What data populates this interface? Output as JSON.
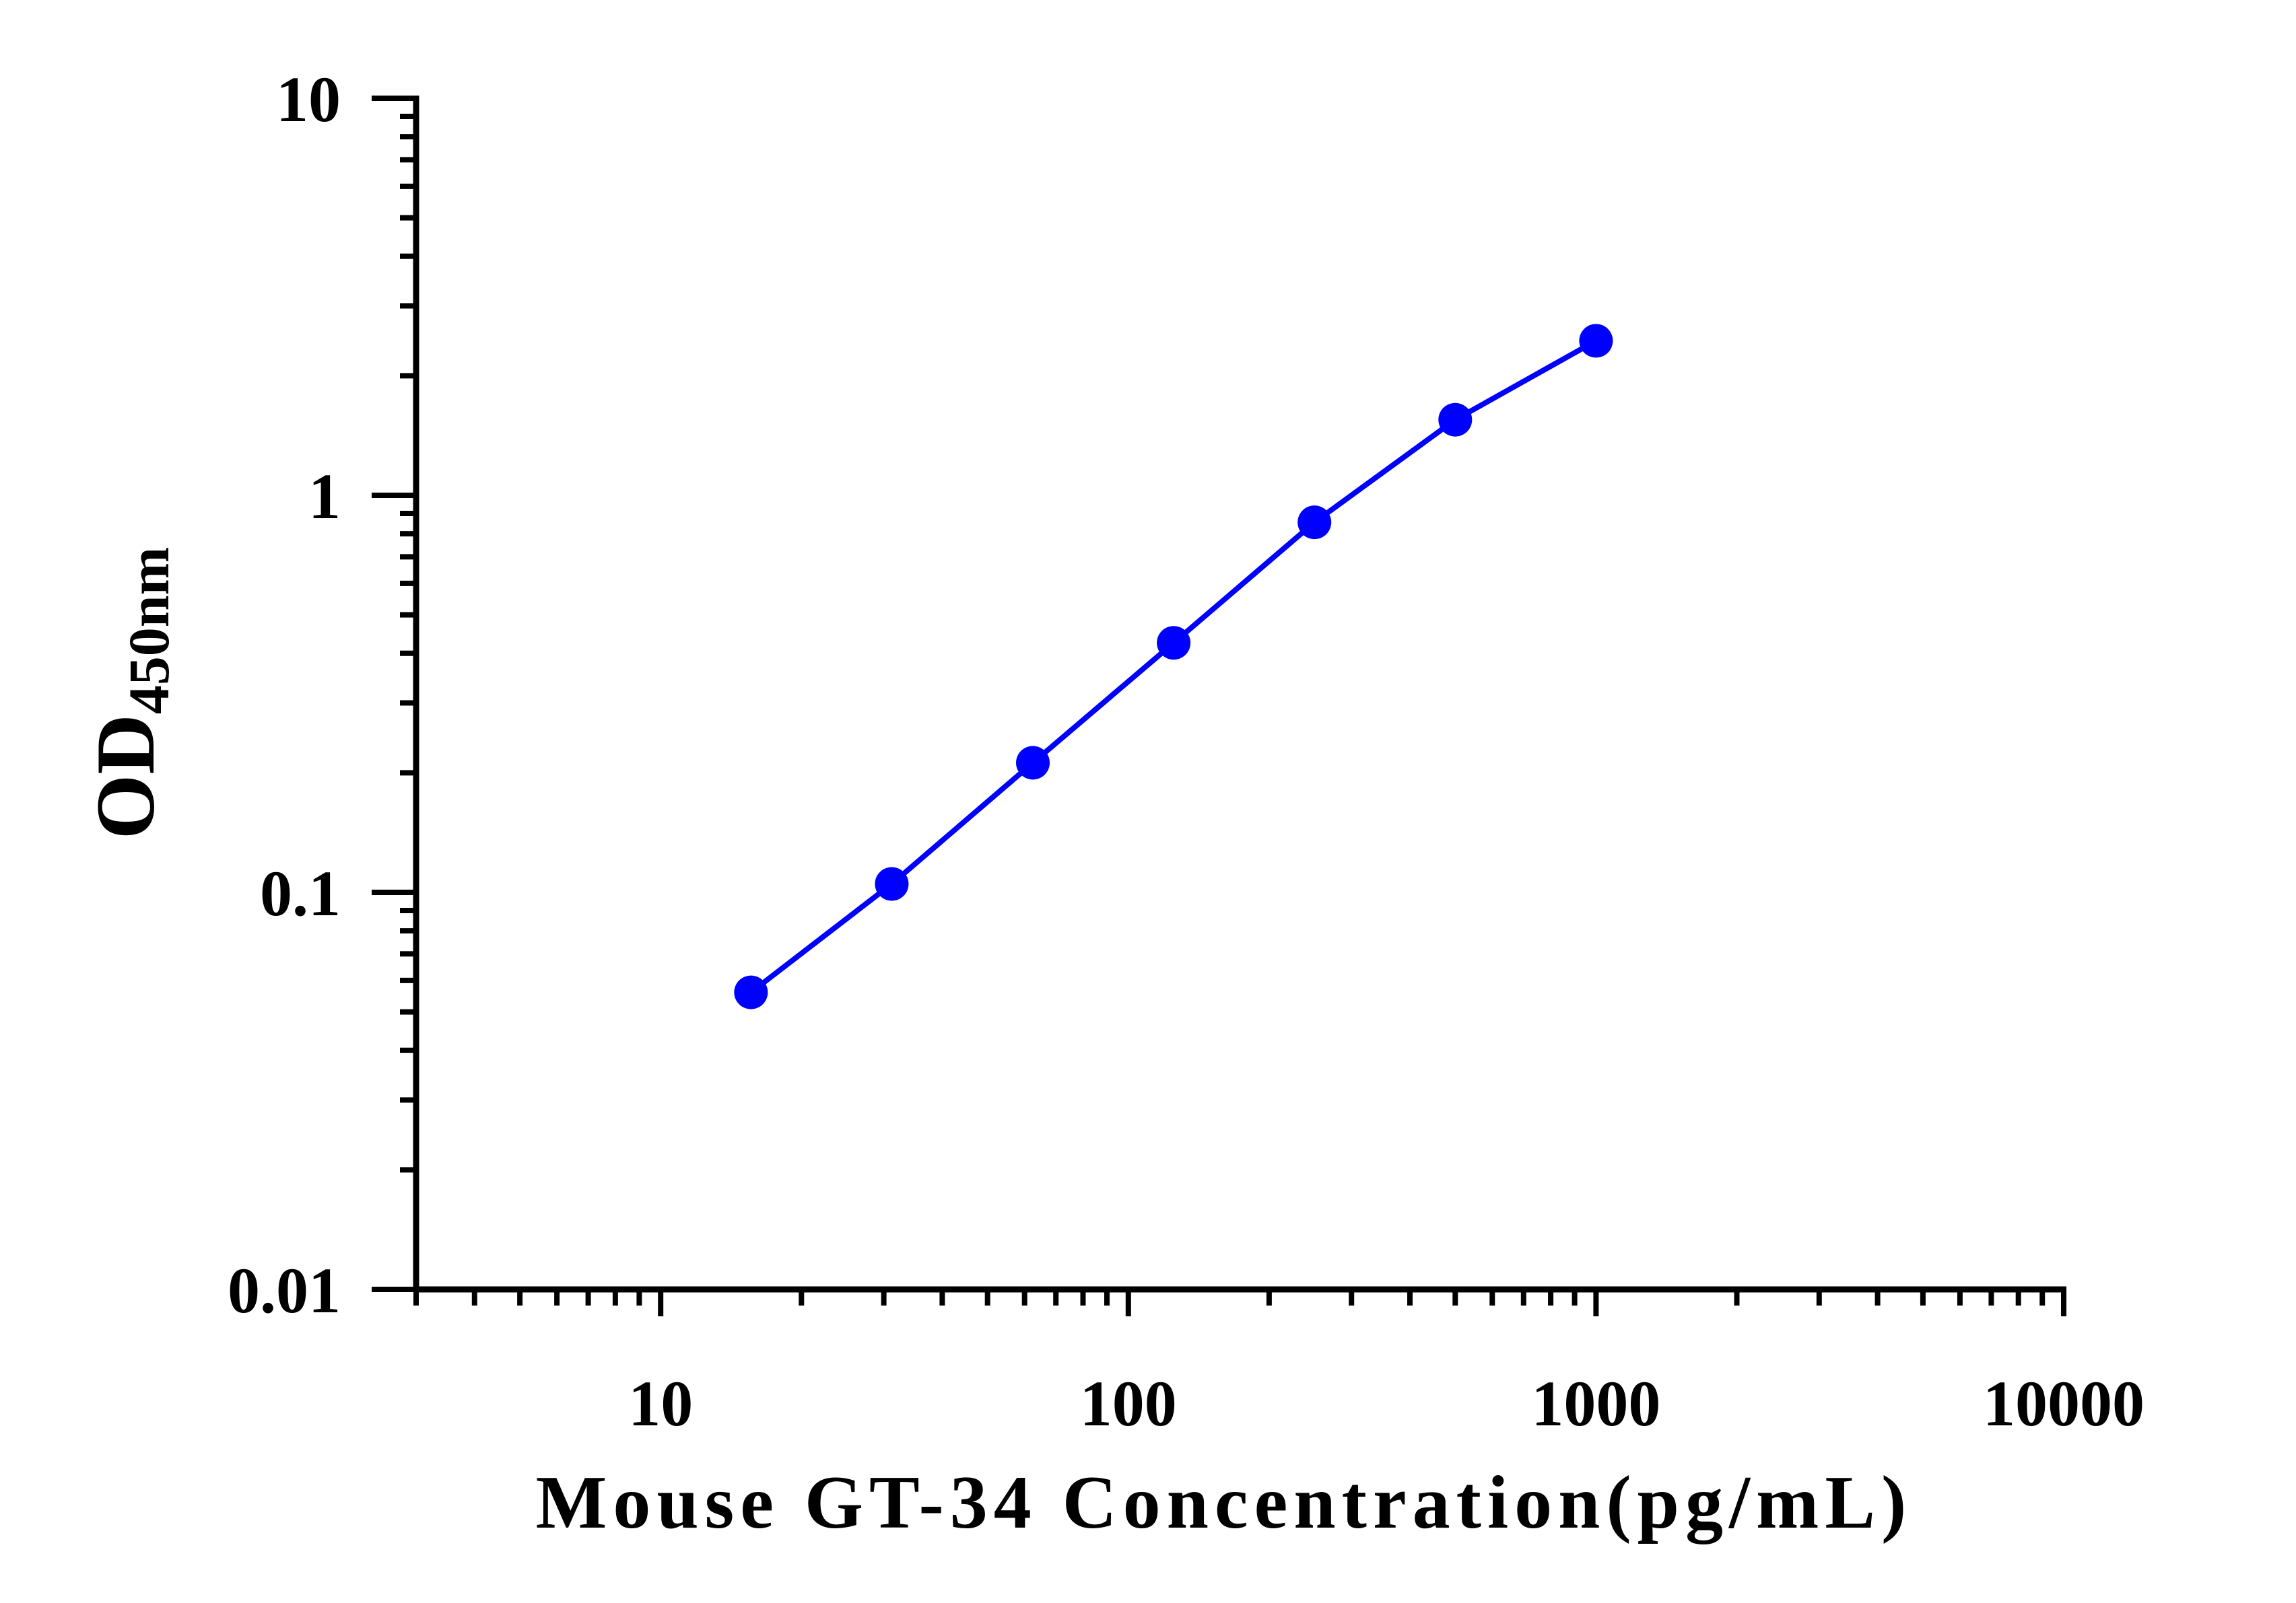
{
  "chart_data": {
    "type": "line",
    "xlabel": "Mouse GT-34 Concentration(pg/mL)",
    "ylabel": {
      "main": "OD",
      "subscript": "450nm"
    },
    "x_scale": "log",
    "y_scale": "log",
    "xlim": [
      3,
      10000
    ],
    "ylim": [
      0.01,
      10
    ],
    "x_ticks": [
      10,
      100,
      1000,
      10000
    ],
    "x_tick_labels": [
      "10",
      "100",
      "1000",
      "10000"
    ],
    "y_ticks": [
      0.01,
      0.1,
      1,
      10
    ],
    "y_tick_labels": [
      "0.01",
      "0.1",
      "1",
      "10"
    ],
    "grid": false,
    "color": "#0000ff",
    "series": [
      {
        "x": [
          15.6,
          31.2,
          62.5,
          125,
          250,
          500,
          1000
        ],
        "y": [
          0.056,
          0.105,
          0.212,
          0.425,
          0.855,
          1.55,
          2.45
        ]
      }
    ]
  }
}
